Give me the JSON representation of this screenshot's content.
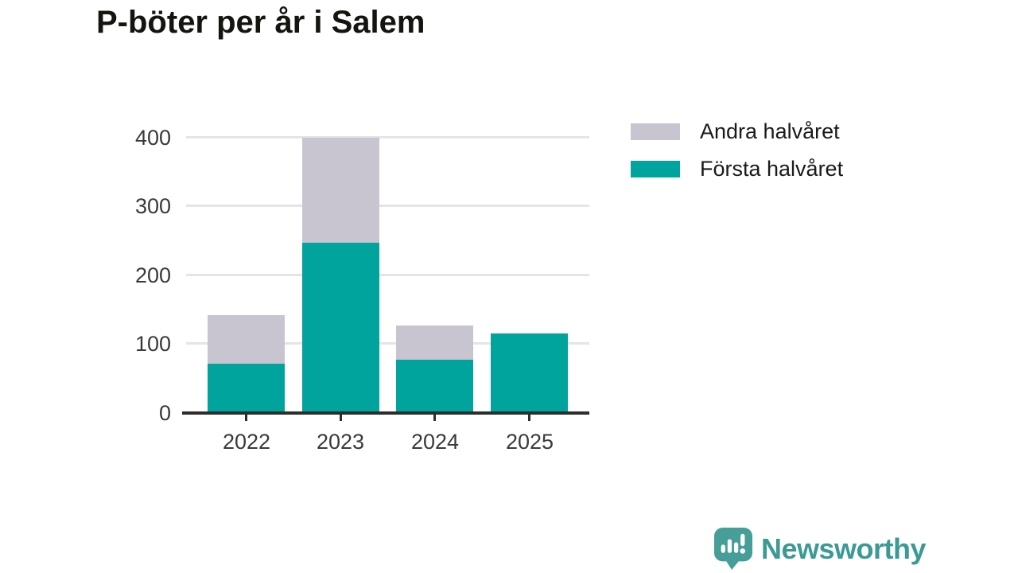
{
  "title": "P-böter per år i Salem",
  "chart_data": {
    "type": "bar",
    "stacked": true,
    "title": "P-böter per år i Salem",
    "categories": [
      "2022",
      "2023",
      "2024",
      "2025"
    ],
    "series": [
      {
        "name": "Första halvåret",
        "color": "#00a49c",
        "values": [
          72,
          247,
          77,
          116
        ]
      },
      {
        "name": "Andra halvåret",
        "color": "#c8c5d1",
        "values": [
          70,
          153,
          50,
          0
        ]
      }
    ],
    "totals": [
      142,
      400,
      127,
      116
    ],
    "xlabel": "",
    "ylabel": "",
    "ylim": [
      0,
      400
    ],
    "yticks": [
      0,
      100,
      200,
      300,
      400
    ],
    "grid": true,
    "legend_position": "top-right"
  },
  "legend": {
    "items": [
      {
        "label": "Andra halvåret",
        "color": "#c8c5d1"
      },
      {
        "label": "Första halvåret",
        "color": "#00a49c"
      }
    ]
  },
  "branding": {
    "logo_text": "Newsworthy",
    "logo_icon": "speech-bubble-bar-chart-icon",
    "text_color": "#3b9a94",
    "icon_color": "#459e98"
  },
  "colors": {
    "background": "#ffffff",
    "bar_teal": "#00a49c",
    "bar_gray": "#c8c5d1",
    "gridline": "#e5e5e7",
    "axis": "#2d2d2d",
    "tick_label": "#3a3a3a",
    "title": "#15150f"
  }
}
